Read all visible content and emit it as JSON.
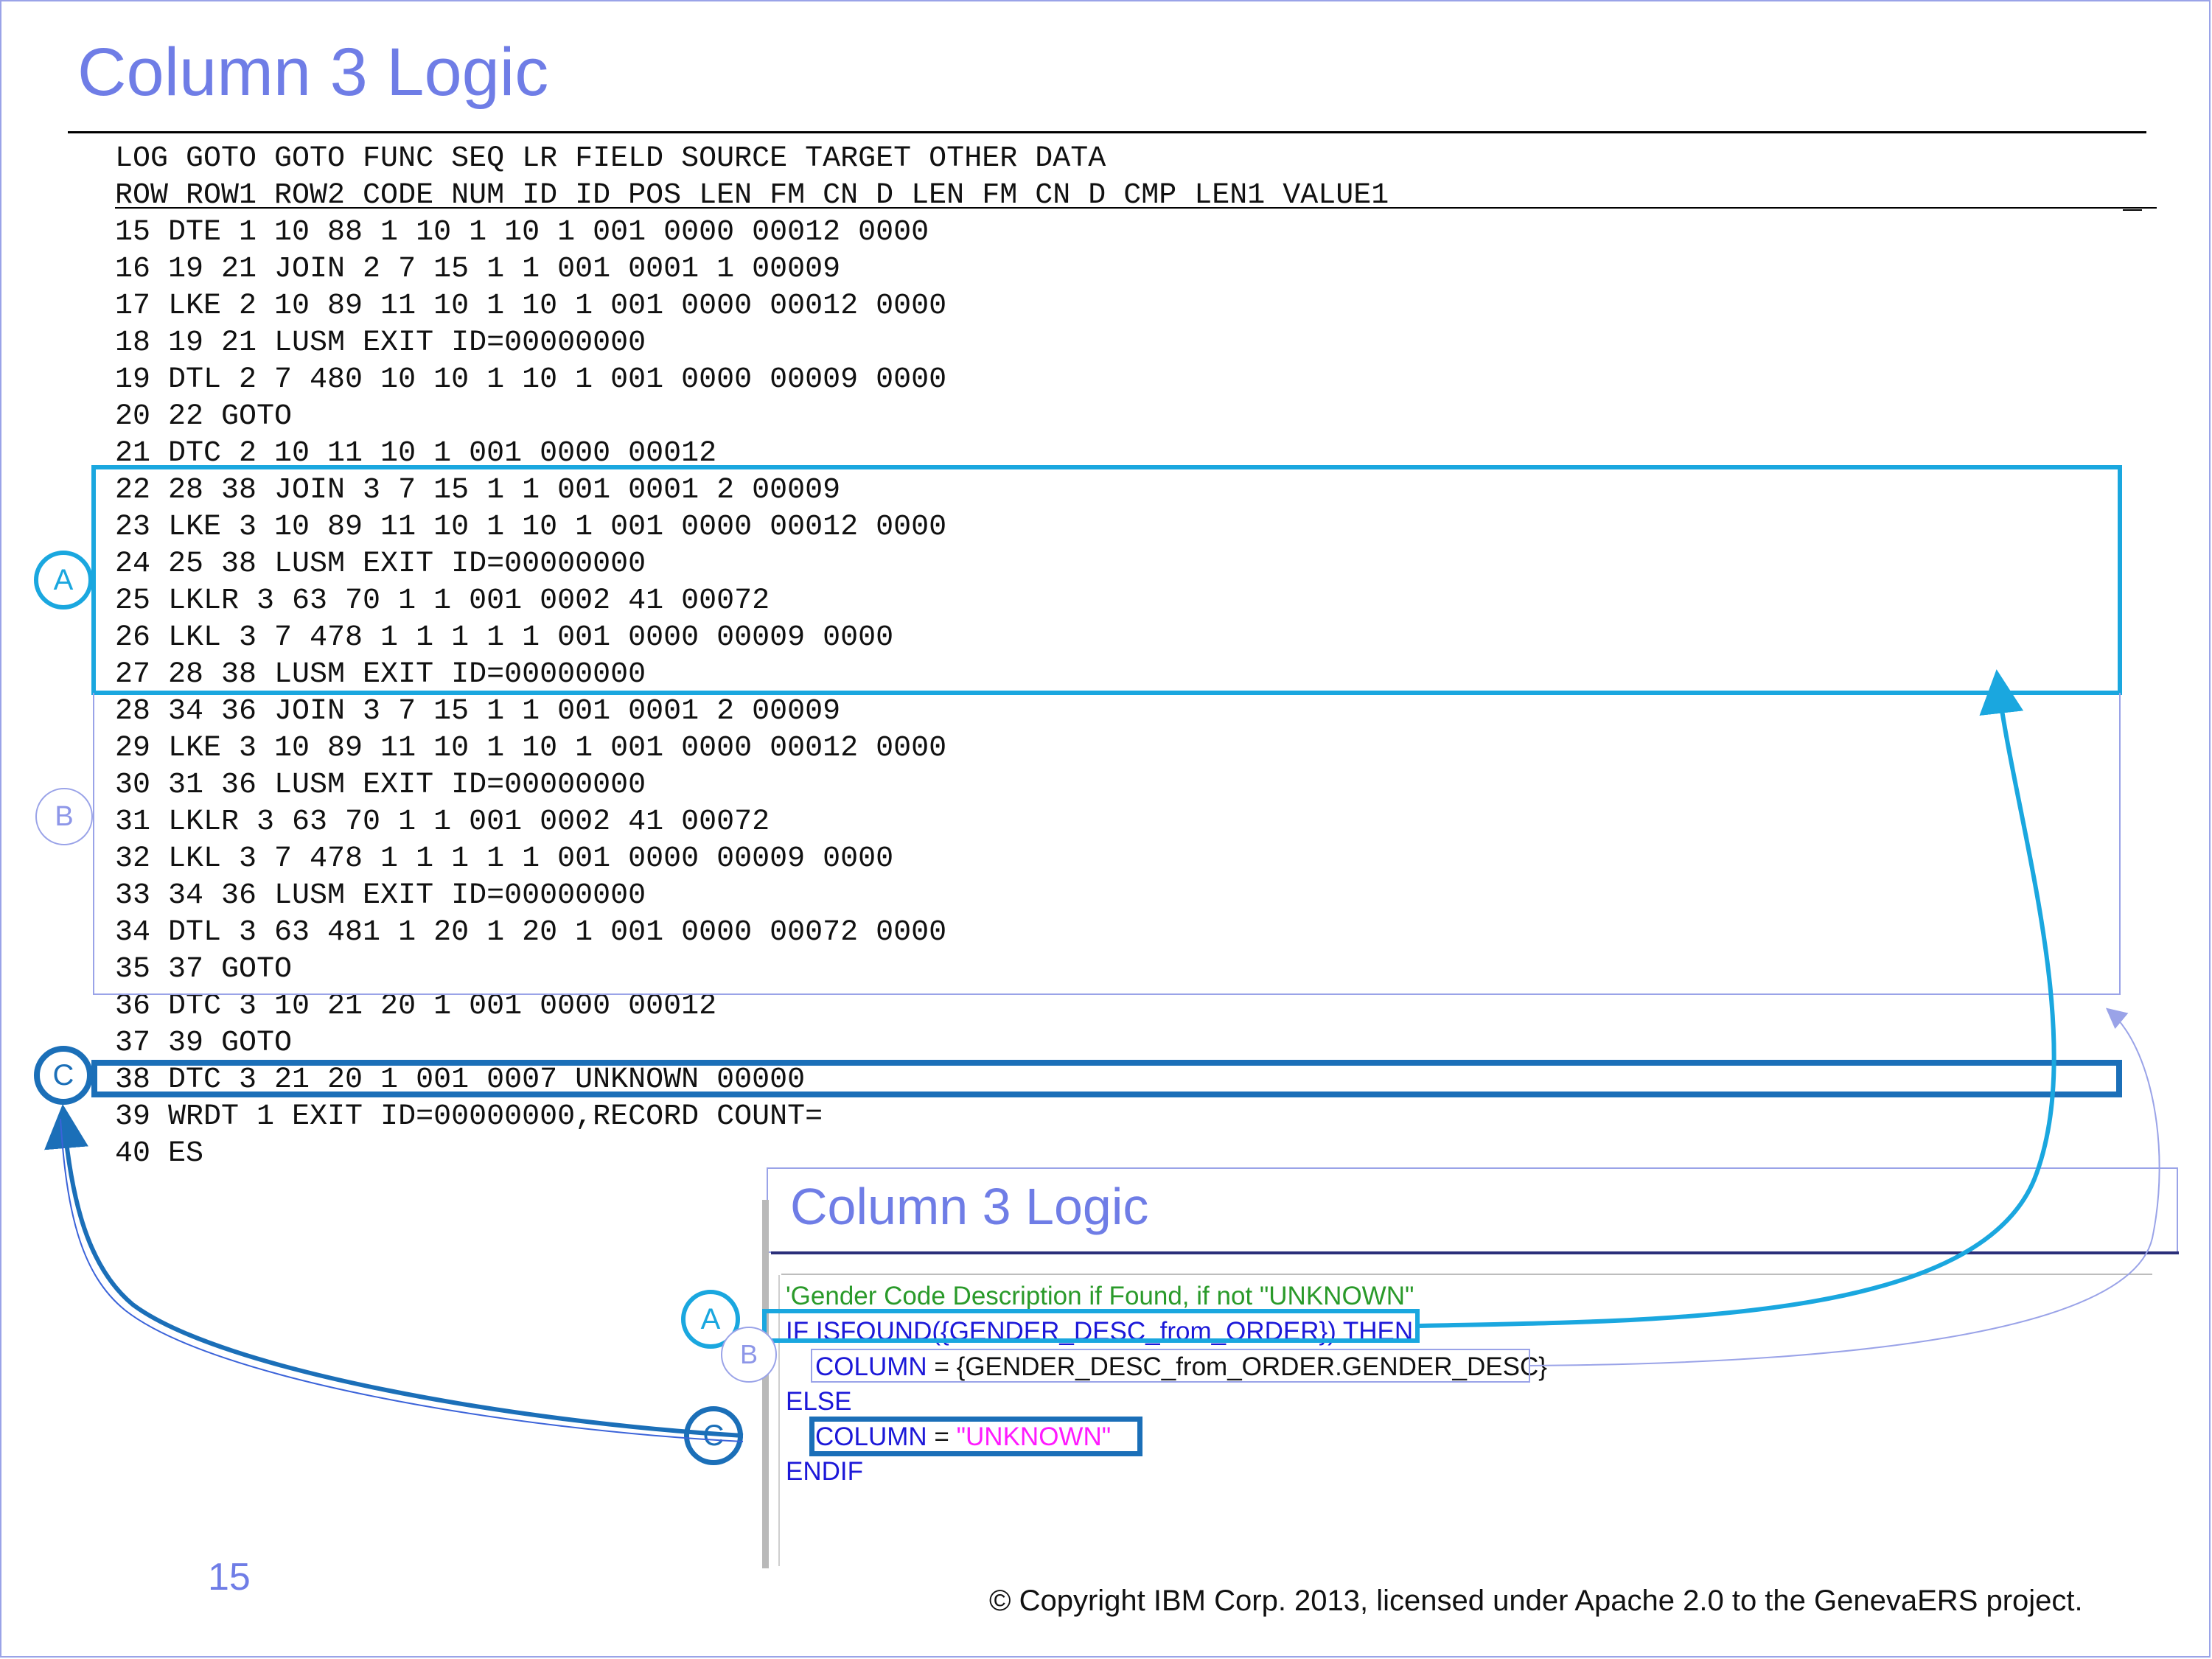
{
  "slide": {
    "title": "Column 3 Logic",
    "page_number": "15",
    "copyright": "© Copyright IBM Corp. 2013, licensed under Apache 2.0 to the GenevaERS project."
  },
  "listing": {
    "header1": "LOG GOTO  GOTO FUNC SEQ    LR FIELD      SOURCE          TARGET     OTHER DATA",
    "header2": "ROW ROW1  ROW2 CODE NUM    ID    ID  POS  LEN FM CN D  LEN FM CN D CMP LEN1 VALUE1",
    "rows": [
      "15                DTE   1    10    88    1   10  1         10  1     001 0000              00012 0000",
      "16     19     21 JOIN  2     7    15    1       1                   001 0001 1            00009",
      "17                LKE   2    10    89   11   10  1         10  1     001 0000              00012 0000",
      "18     19     21 LUSM                                               EXIT ID=00000000",
      "19                DTL   2     7   480   10   10  1         10  1     001 0000              00009 0000",
      "20     22         GOTO",
      "21                DTC   2    10         11   10  1                   001 0000              00012",
      "22     28     38 JOIN  3     7    15    1       1                   001 0001 2            00009",
      "23                LKE   3    10    89   11   10  1         10  1     001 0000              00012 0000",
      "24     25     38 LUSM                                               EXIT ID=00000000",
      "25                LKLR  3    63    70    1       1                   001 0002 41           00072",
      "26                LKL   3     7   478    1    1  1          1  1     001 0000              00009 0000",
      "27     28     38 LUSM                                               EXIT ID=00000000",
      "28     34     36 JOIN  3     7    15    1       1                   001 0001 2            00009",
      "29                LKE   3    10    89   11   10  1         10  1     001 0000              00012 0000",
      "30     31     36 LUSM                                               EXIT ID=00000000",
      "31                LKLR  3    63    70    1       1                   001 0002 41           00072",
      "32                LKL   3     7   478    1    1  1          1  1     001 0000              00009 0000",
      "33     34     36 LUSM                                               EXIT ID=00000000",
      "34                DTL   3    63   481    1   20  1         20  1     001 0000              00072 0000",
      "35     37         GOTO",
      "36                DTC   3    10         21   20  1                   001 0000              00012",
      "37     39         GOTO",
      "38                DTC   3               21   20  1                   001 0007 UNKNOWN      00000",
      "39                WRDT  1                                               EXIT ID=00000000,RECORD COUNT=",
      "40                ES"
    ]
  },
  "callouts": {
    "a": "A",
    "b": "B",
    "c": "C"
  },
  "inset": {
    "title": "Column 3 Logic",
    "comment": "'Gender Code Description if Found, if not \"UNKNOWN\"",
    "if_kw": "IF",
    "if_func": "ISFOUND({GENDER_DESC_from_ORDER})",
    "then_kw": "THEN",
    "column_kw": "COLUMN",
    "equals": "=",
    "column_value_1": "{GENDER_DESC_from_ORDER.GENDER_DESC}",
    "else_kw": "ELSE",
    "column_value_2": "\"UNKNOWN\"",
    "endif_kw": "ENDIF"
  },
  "colors": {
    "title": "#6f7de6",
    "callout_a": "#1aa7df",
    "callout_b": "#9aa3e8",
    "callout_c": "#1b6fb8",
    "keyword": "#1c18d8",
    "string": "#ff1aff",
    "comment": "#2a9a2a"
  }
}
